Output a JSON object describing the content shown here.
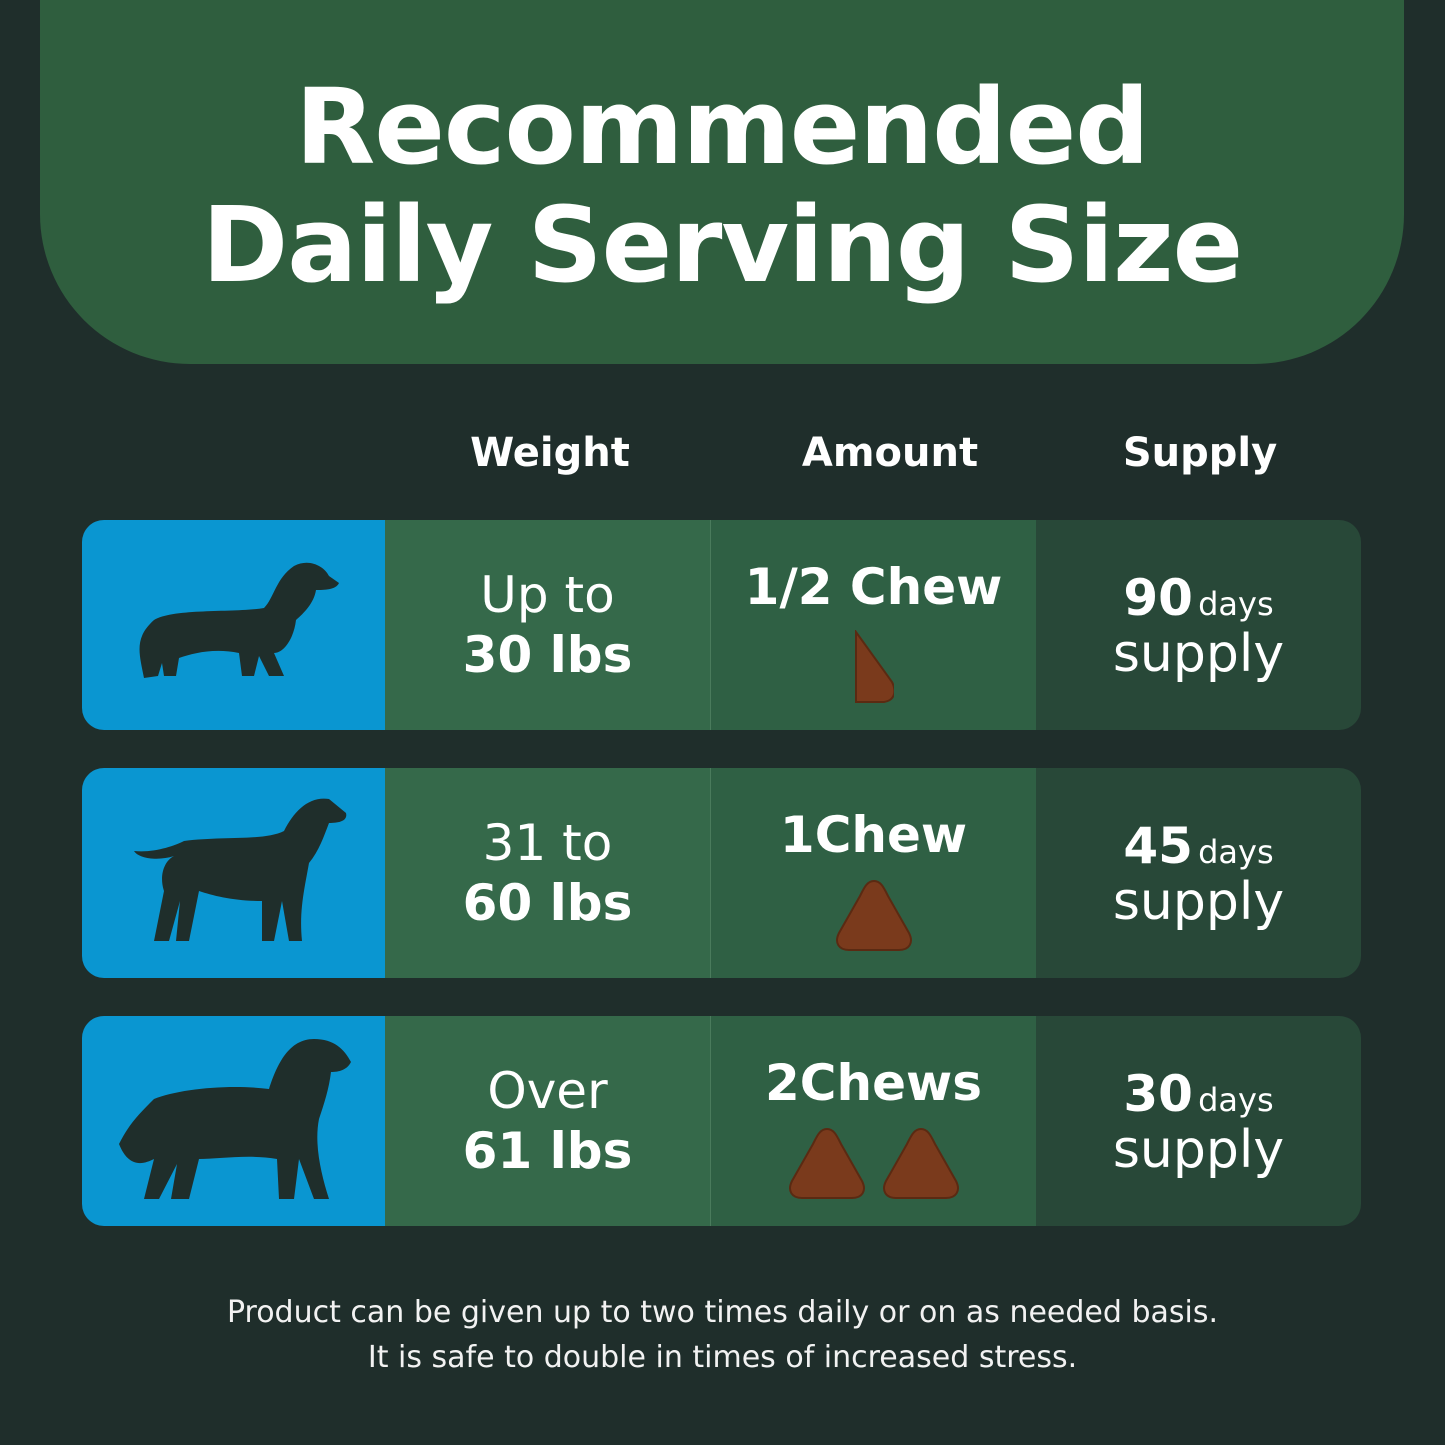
{
  "title": {
    "line1": "Recommended",
    "line2": "Daily Serving Size"
  },
  "columns": {
    "weight": "Weight",
    "amount": "Amount",
    "supply": "Supply"
  },
  "colors": {
    "background": "#1f2e2b",
    "header": "#2f5e3e",
    "dog_panel": "#0a96d1",
    "chew": "#7a3a1c"
  },
  "rows": [
    {
      "dog_icon": "small-dachshund-icon",
      "weight_line1": "Up to",
      "weight_line2": "30 lbs",
      "amount": "1/2 Chew",
      "chew_count": 0.5,
      "supply_num": "90",
      "supply_days": "days",
      "supply_word": "supply"
    },
    {
      "dog_icon": "medium-dog-icon",
      "weight_line1": "31 to",
      "weight_line2": "60 lbs",
      "amount": "1Chew",
      "chew_count": 1,
      "supply_num": "45",
      "supply_days": "days",
      "supply_word": "supply"
    },
    {
      "dog_icon": "large-dog-icon",
      "weight_line1": "Over",
      "weight_line2": "61 lbs",
      "amount": "2Chews",
      "chew_count": 2,
      "supply_num": "30",
      "supply_days": "days",
      "supply_word": "supply"
    }
  ],
  "footer": {
    "line1": "Product can be given up to two times daily or on as needed basis.",
    "line2": "It is safe to double in times of increased stress."
  }
}
